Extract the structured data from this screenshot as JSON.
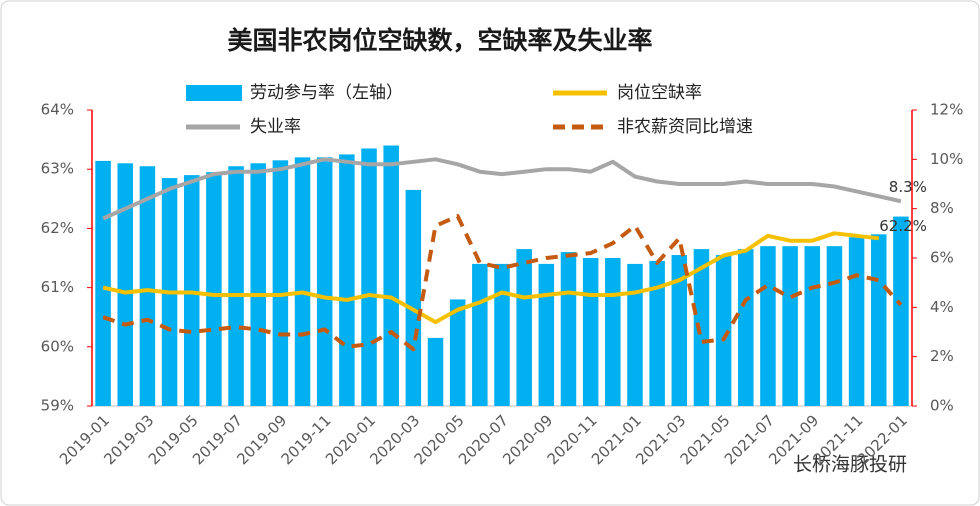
{
  "chart_data": {
    "type": "bar-line",
    "title": "美国非农岗位空缺数，空缺率及失业率",
    "watermark": "长桥海豚投研",
    "categories": [
      "2019-01",
      null,
      "2019-03",
      null,
      "2019-05",
      null,
      "2019-07",
      null,
      "2019-09",
      null,
      "2019-11",
      null,
      "2020-01",
      null,
      "2020-03",
      null,
      "2020-05",
      null,
      "2020-07",
      null,
      "2020-09",
      null,
      "2020-11",
      null,
      "2021-01",
      null,
      "2021-03",
      null,
      "2021-05",
      null,
      "2021-07",
      null,
      "2021-09",
      null,
      "2021-11",
      null,
      "2022-01"
    ],
    "series": [
      {
        "name": "劳动参与率（左轴）",
        "kind": "bar",
        "color": "#00b0f0",
        "axis": "y",
        "values": [
          63.14,
          63.1,
          63.05,
          62.85,
          62.9,
          62.95,
          63.05,
          63.1,
          63.15,
          63.2,
          63.2,
          63.25,
          63.35,
          63.4,
          62.65,
          60.15,
          60.8,
          61.4,
          61.4,
          61.65,
          61.4,
          61.6,
          61.5,
          61.5,
          61.4,
          61.45,
          61.55,
          61.65,
          61.55,
          61.65,
          61.7,
          61.7,
          61.7,
          61.7,
          61.85,
          61.9,
          62.2
        ],
        "value_labels": [
          null,
          null,
          null,
          null,
          null,
          null,
          null,
          null,
          null,
          null,
          null,
          null,
          null,
          null,
          null,
          null,
          null,
          null,
          null,
          null,
          null,
          null,
          null,
          null,
          null,
          null,
          null,
          null,
          null,
          null,
          null,
          null,
          null,
          null,
          null,
          null,
          "62.2%"
        ]
      },
      {
        "name": "岗位空缺率",
        "kind": "line",
        "color": "#f5c000",
        "axis": "y2",
        "values": [
          4.8,
          4.6,
          4.7,
          4.6,
          4.6,
          4.5,
          4.5,
          4.5,
          4.5,
          4.6,
          4.4,
          4.3,
          4.5,
          4.4,
          3.9,
          3.4,
          3.9,
          4.2,
          4.6,
          4.4,
          4.5,
          4.6,
          4.5,
          4.5,
          4.6,
          4.8,
          5.1,
          5.6,
          6.1,
          6.3,
          6.9,
          6.7,
          6.7,
          7.0,
          6.9,
          6.8,
          null
        ]
      },
      {
        "name": "失业率",
        "kind": "line",
        "color": "#a6a6a6",
        "axis": "y2",
        "values": [
          7.6,
          8.0,
          8.4,
          8.8,
          9.1,
          9.4,
          9.5,
          9.5,
          9.6,
          9.8,
          10.0,
          9.9,
          9.8,
          9.8,
          9.9,
          10.0,
          9.8,
          9.5,
          9.4,
          9.5,
          9.6,
          9.6,
          9.5,
          9.9,
          9.3,
          9.1,
          9.0,
          9.0,
          9.0,
          9.1,
          9.0,
          9.0,
          9.0,
          8.9,
          8.7,
          8.5,
          8.3
        ],
        "value_labels": [
          null,
          null,
          null,
          null,
          null,
          null,
          null,
          null,
          null,
          null,
          null,
          null,
          null,
          null,
          null,
          null,
          null,
          null,
          null,
          null,
          null,
          null,
          null,
          null,
          null,
          null,
          null,
          null,
          null,
          null,
          null,
          null,
          null,
          null,
          null,
          null,
          "8.3%"
        ]
      },
      {
        "name": "非农薪资同比增速",
        "kind": "dashed",
        "color": "#c55a11",
        "axis": "y2",
        "values": [
          3.6,
          3.3,
          3.5,
          3.1,
          3.0,
          3.1,
          3.2,
          3.1,
          2.9,
          2.9,
          3.1,
          2.4,
          2.5,
          3.0,
          2.3,
          7.3,
          7.7,
          5.8,
          5.6,
          5.8,
          6.0,
          6.1,
          6.2,
          6.6,
          7.3,
          5.8,
          6.8,
          2.6,
          2.7,
          4.3,
          4.9,
          4.4,
          4.8,
          5.0,
          5.3,
          5.1,
          4.1
        ]
      }
    ],
    "ylim": [
      59,
      64
    ],
    "yticks": [
      {
        "value": 59,
        "label": "59%"
      },
      {
        "value": 60,
        "label": "60%"
      },
      {
        "value": 61,
        "label": "61%"
      },
      {
        "value": 62,
        "label": "62%"
      },
      {
        "value": 63,
        "label": "63%"
      },
      {
        "value": 64,
        "label": "64%"
      }
    ],
    "y2lim": [
      0,
      12
    ],
    "y2ticks": [
      {
        "value": 0,
        "label": "0%"
      },
      {
        "value": 2,
        "label": "2%"
      },
      {
        "value": 4,
        "label": "4%"
      },
      {
        "value": 6,
        "label": "6%"
      },
      {
        "value": 8,
        "label": "8%"
      },
      {
        "value": 10,
        "label": "10%"
      },
      {
        "value": 12,
        "label": "12%"
      }
    ],
    "grid": false
  }
}
